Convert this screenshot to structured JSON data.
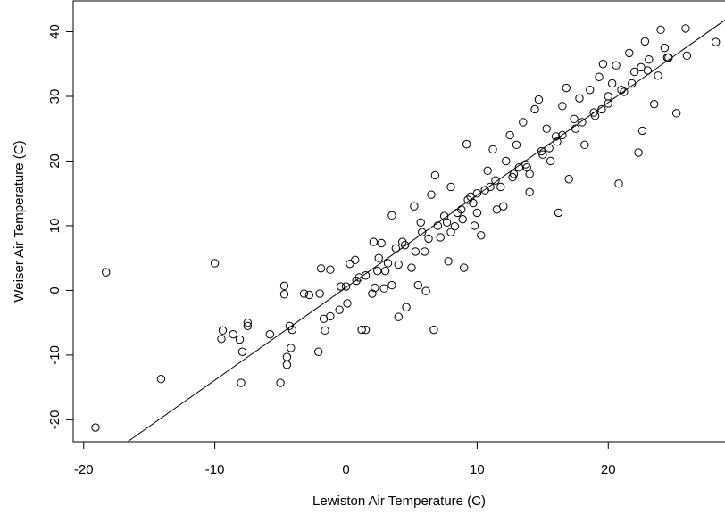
{
  "chart_data": {
    "type": "scatter",
    "x_label": "Lewiston Air Temperature (C)",
    "y_label": "Weiser Air Temperature (C)",
    "xlim": [
      -20.8,
      28.9
    ],
    "ylim": [
      -23.4,
      44.9
    ],
    "xticks": [
      -20,
      -10,
      0,
      10,
      20
    ],
    "yticks": [
      -20,
      -10,
      0,
      10,
      20,
      30,
      40
    ],
    "color": "#000000",
    "fit_line": {
      "x": [
        -16.65,
        28.9
      ],
      "y": [
        -23.4,
        41.8
      ]
    },
    "x": [
      -18.3,
      -19.1,
      -10,
      -14.1,
      -8,
      -5,
      -9.5,
      -9.4,
      -8.6,
      -8.1,
      -7.5,
      -7.5,
      -7.9,
      -5.8,
      -4.7,
      -4.7,
      -4.3,
      -4.1,
      -4.2,
      -4.5,
      -4.5,
      -3.2,
      -2.8,
      -2,
      -1.9,
      -1.7,
      -1.2,
      -1.6,
      -2.1,
      -1.2,
      -0.5,
      -0.4,
      0,
      0.1,
      0.3,
      0.7,
      1.2,
      1.5,
      1.5,
      2,
      2.2,
      2.1,
      2.7,
      2.9,
      3.2,
      3.5,
      3.5,
      4,
      4.3,
      4.6,
      5,
      5.2,
      5.5,
      5.7,
      6.1,
      6.5,
      6.7,
      6.8,
      7.2,
      7.5,
      7.8,
      8,
      8.3,
      8.8,
      9,
      9.2,
      9.5,
      9.8,
      10,
      10.3,
      10.8,
      11.2,
      11.5,
      11.8,
      12.2,
      12.5,
      12.7,
      13,
      13.5,
      13.8,
      14,
      14.4,
      14.7,
      15,
      15.3,
      15.6,
      16,
      16.2,
      16.5,
      16.8,
      17,
      17.4,
      17.8,
      18.2,
      18.6,
      19,
      19.3,
      19.6,
      20,
      20.3,
      20.8,
      20.6,
      21.2,
      21.6,
      22,
      22.3,
      22.6,
      22.8,
      23.1,
      23.5,
      23.8,
      24,
      24.3,
      24.6,
      25.2,
      25.9,
      26,
      28.2,
      22.5,
      12,
      8,
      6,
      4,
      3,
      10,
      14,
      18,
      20,
      1,
      2.5,
      4.5,
      5.8,
      7,
      8.5,
      9.3,
      11,
      12.8,
      13.2,
      15.5,
      16.5,
      17.5,
      19.5,
      21,
      23,
      24.5,
      3.8,
      6.3,
      7.7,
      9.7,
      10.6,
      11.4,
      13.7,
      14.9,
      16.1,
      18.9,
      21.8,
      0.8,
      2.4,
      5.3,
      8.9
    ],
    "values": [
      2.8,
      -21.2,
      4.2,
      -13.7,
      -14.3,
      -14.3,
      -7.5,
      -6.2,
      -6.8,
      -7.6,
      -5,
      -5.5,
      -9.5,
      -6.8,
      0.7,
      -0.6,
      -5.5,
      -6.1,
      -8.9,
      -10.3,
      -11.5,
      -0.5,
      -0.7,
      -0.5,
      3.4,
      -4.4,
      -4,
      -6.2,
      -9.5,
      3.2,
      -3,
      0.6,
      0.6,
      -2,
      4.1,
      4.7,
      -6.1,
      -6.1,
      2.3,
      -0.5,
      0.4,
      7.5,
      7.3,
      0.3,
      4.2,
      0.8,
      11.6,
      -4.1,
      7.5,
      -2.6,
      3.5,
      13,
      0.8,
      10.5,
      -0.1,
      14.8,
      -6.1,
      17.8,
      8.2,
      11.5,
      4.5,
      16,
      9.9,
      12.5,
      3.5,
      22.6,
      14.5,
      10,
      15,
      8.5,
      18.5,
      21.8,
      12.5,
      16,
      20,
      24,
      17.5,
      22.5,
      26,
      19,
      15.2,
      28,
      29.5,
      21,
      25,
      20,
      23.8,
      12,
      28.5,
      31.3,
      17.2,
      26.5,
      29.7,
      22.5,
      31,
      27,
      33,
      35,
      28.9,
      32,
      16.5,
      34.8,
      30.7,
      36.7,
      33.8,
      21.3,
      24.7,
      38.5,
      35.7,
      28.8,
      33.2,
      40.3,
      37.5,
      36,
      27.4,
      40.5,
      36.3,
      38.4,
      34.5,
      13,
      9,
      6,
      4,
      3,
      12,
      18,
      26,
      30,
      2,
      5,
      7,
      9,
      10,
      12,
      14,
      16,
      18,
      19,
      22,
      24,
      25,
      28,
      31,
      34,
      36,
      6.5,
      8,
      10.5,
      13.5,
      15.5,
      17,
      19.5,
      21.5,
      23,
      27.5,
      32,
      1.5,
      3,
      6,
      11
    ]
  }
}
